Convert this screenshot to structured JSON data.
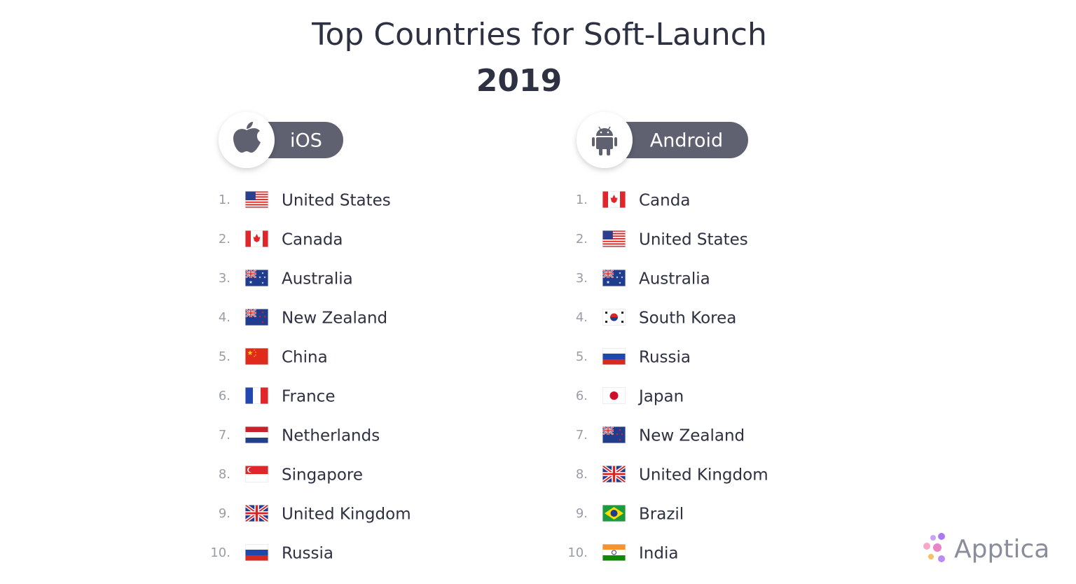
{
  "header": {
    "title": "Top Countries for Soft-Launch",
    "year": "2019"
  },
  "columns": [
    {
      "platform": "iOS",
      "items": [
        {
          "rank": "1.",
          "country": "United States"
        },
        {
          "rank": "2.",
          "country": "Canada"
        },
        {
          "rank": "3.",
          "country": "Australia"
        },
        {
          "rank": "4.",
          "country": "New Zealand"
        },
        {
          "rank": "5.",
          "country": "China"
        },
        {
          "rank": "6.",
          "country": "France"
        },
        {
          "rank": "7.",
          "country": "Netherlands"
        },
        {
          "rank": "8.",
          "country": "Singapore"
        },
        {
          "rank": "9.",
          "country": "United Kingdom"
        },
        {
          "rank": "10.",
          "country": "Russia"
        }
      ]
    },
    {
      "platform": "Android",
      "items": [
        {
          "rank": "1.",
          "country": "Canda"
        },
        {
          "rank": "2.",
          "country": "United States"
        },
        {
          "rank": "3.",
          "country": "Australia"
        },
        {
          "rank": "4.",
          "country": "South Korea"
        },
        {
          "rank": "5.",
          "country": "Russia"
        },
        {
          "rank": "6.",
          "country": "Japan"
        },
        {
          "rank": "7.",
          "country": "New Zealand"
        },
        {
          "rank": "8.",
          "country": "United Kingdom"
        },
        {
          "rank": "9.",
          "country": "Brazil"
        },
        {
          "rank": "10.",
          "country": "India"
        }
      ]
    }
  ],
  "brand": "Apptica"
}
